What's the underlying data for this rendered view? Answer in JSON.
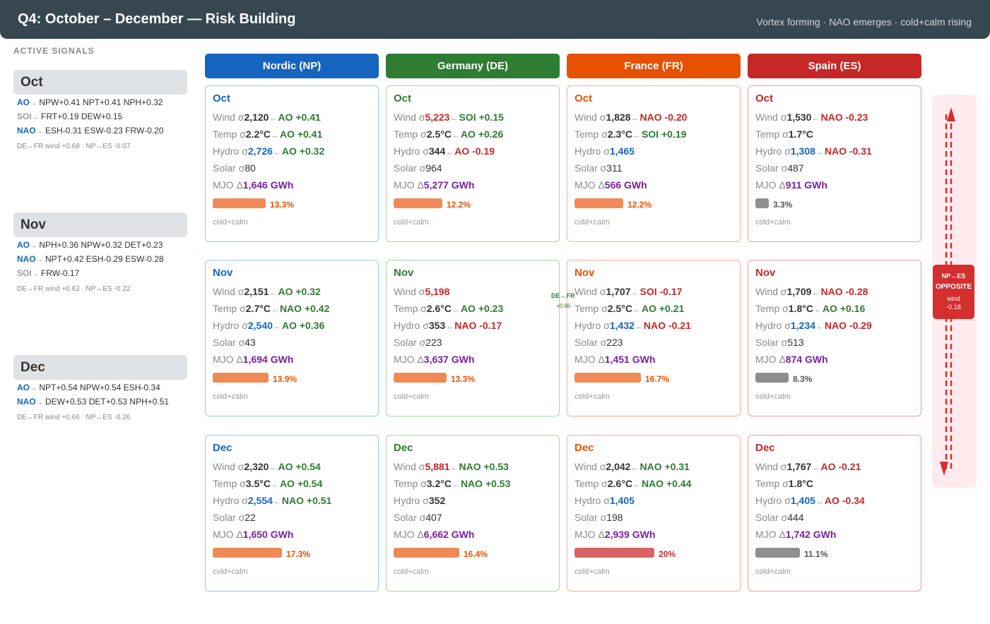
{
  "header": {
    "title": "Q4: October – December — Risk Building",
    "subtitle": "Vortex forming · NAO emerges · cold+calm rising"
  },
  "signals": {
    "heading": "ACTIVE SIGNALS",
    "months": [
      {
        "month": "Oct",
        "lines": [
          {
            "idx": "AO",
            "color": "#1565c0",
            "text": "NPW+0.41 NPT+0.41 NPH+0.32"
          },
          {
            "idx": "SOI",
            "color": "#9e9e9e",
            "text": "FRT+0.19 DEW+0.15"
          },
          {
            "idx": "NAO",
            "color": "#1565c0",
            "text": "ESH-0.31 ESW-0.23 FRW-0.20"
          }
        ],
        "corr": "DE↔FR wind +0.68 · NP↔ES -0.07"
      },
      {
        "month": "Nov",
        "lines": [
          {
            "idx": "AO",
            "color": "#1565c0",
            "text": "NPH+0.36 NPW+0.32 DET+0.23"
          },
          {
            "idx": "NAO",
            "color": "#1565c0",
            "text": "NPT+0.42 ESH-0.29 ESW-0.28"
          },
          {
            "idx": "SOI",
            "color": "#9e9e9e",
            "text": "FRW-0.17"
          }
        ],
        "corr": "DE↔FR wind +0.63 · NP↔ES -0.22"
      },
      {
        "month": "Dec",
        "lines": [
          {
            "idx": "AO",
            "color": "#1565c0",
            "text": "NPT+0.54 NPW+0.54 ESH-0.34"
          },
          {
            "idx": "NAO",
            "color": "#1565c0",
            "text": "DEW+0.53 DET+0.53 NPH+0.51"
          }
        ],
        "corr": "DE↔FR wind +0.66 · NP↔ES -0.26"
      }
    ]
  },
  "labels": {
    "wind": "Wind σ",
    "temp": "Temp σ",
    "hydro": "Hydro σ",
    "solar": "Solar σ",
    "mjo": "MJO Δ",
    "arrow": "←",
    "sig_arrow": "→",
    "tag": "cold+calm"
  },
  "countries": [
    {
      "name": "Nordic (NP)",
      "color": "#1565c0",
      "border": "#90caf9",
      "cells": [
        {
          "month": "Oct",
          "wind": "2,120",
          "wind_c": "#333333",
          "wind_drv": "AO +0.41",
          "wind_drv_c": "#2e7d32",
          "temp": "2.2°C",
          "temp_c": "#333333",
          "temp_drv": "AO +0.41",
          "temp_drv_c": "#2e7d32",
          "hydro": "2,726",
          "hydro_c": "#1565c0",
          "hydro_drv": "AO +0.32",
          "hydro_drv_c": "#2e7d32",
          "solar": "80",
          "mjo": "1,646 GWh",
          "risk": 13.3,
          "risk_label": "13.3%",
          "bar_c": "#ef8a56",
          "pct_c": "#e65100"
        },
        {
          "month": "Nov",
          "wind": "2,151",
          "wind_c": "#333333",
          "wind_drv": "AO +0.32",
          "wind_drv_c": "#2e7d32",
          "temp": "2.7°C",
          "temp_c": "#333333",
          "temp_drv": "NAO +0.42",
          "temp_drv_c": "#2e7d32",
          "hydro": "2,540",
          "hydro_c": "#1565c0",
          "hydro_drv": "AO +0.36",
          "hydro_drv_c": "#2e7d32",
          "solar": "43",
          "mjo": "1,694 GWh",
          "risk": 13.9,
          "risk_label": "13.9%",
          "bar_c": "#ef8a56",
          "pct_c": "#e65100"
        },
        {
          "month": "Dec",
          "wind": "2,320",
          "wind_c": "#333333",
          "wind_drv": "AO +0.54",
          "wind_drv_c": "#2e7d32",
          "temp": "3.5°C",
          "temp_c": "#333333",
          "temp_drv": "AO +0.54",
          "temp_drv_c": "#2e7d32",
          "hydro": "2,554",
          "hydro_c": "#1565c0",
          "hydro_drv": "NAO +0.51",
          "hydro_drv_c": "#2e7d32",
          "solar": "22",
          "mjo": "1,650 GWh",
          "risk": 17.3,
          "risk_label": "17.3%",
          "bar_c": "#ef8a56",
          "pct_c": "#e65100"
        }
      ]
    },
    {
      "name": "Germany (DE)",
      "color": "#2e7d32",
      "border": "#a5d6a7",
      "cells": [
        {
          "month": "Oct",
          "wind": "5,223",
          "wind_c": "#c62828",
          "wind_drv": "SOI +0.15",
          "wind_drv_c": "#2e7d32",
          "temp": "2.5°C",
          "temp_c": "#333333",
          "temp_drv": "AO +0.26",
          "temp_drv_c": "#2e7d32",
          "hydro": "344",
          "hydro_c": "#333333",
          "hydro_drv": "AO -0.19",
          "hydro_drv_c": "#c62828",
          "solar": "964",
          "mjo": "5,277 GWh",
          "risk": 12.2,
          "risk_label": "12.2%",
          "bar_c": "#ef8a56",
          "pct_c": "#e65100"
        },
        {
          "month": "Nov",
          "wind": "5,198",
          "wind_c": "#c62828",
          "wind_drv": "",
          "wind_drv_c": "#2e7d32",
          "temp": "2.6°C",
          "temp_c": "#333333",
          "temp_drv": "AO +0.23",
          "temp_drv_c": "#2e7d32",
          "hydro": "353",
          "hydro_c": "#333333",
          "hydro_drv": "NAO -0.17",
          "hydro_drv_c": "#c62828",
          "solar": "223",
          "mjo": "3,637 GWh",
          "risk": 13.3,
          "risk_label": "13.3%",
          "bar_c": "#ef8a56",
          "pct_c": "#e65100"
        },
        {
          "month": "Dec",
          "wind": "5,881",
          "wind_c": "#c62828",
          "wind_drv": "NAO +0.53",
          "wind_drv_c": "#2e7d32",
          "temp": "3.2°C",
          "temp_c": "#333333",
          "temp_drv": "NAO +0.53",
          "temp_drv_c": "#2e7d32",
          "hydro": "352",
          "hydro_c": "#333333",
          "hydro_drv": "",
          "hydro_drv_c": "#2e7d32",
          "solar": "407",
          "mjo": "6,662 GWh",
          "risk": 16.4,
          "risk_label": "16.4%",
          "bar_c": "#ef8a56",
          "pct_c": "#e65100"
        }
      ]
    },
    {
      "name": "France (FR)",
      "color": "#e65100",
      "border": "#ffab91",
      "cells": [
        {
          "month": "Oct",
          "wind": "1,828",
          "wind_c": "#333333",
          "wind_drv": "NAO -0.20",
          "wind_drv_c": "#c62828",
          "temp": "2.3°C",
          "temp_c": "#333333",
          "temp_drv": "SOI +0.19",
          "temp_drv_c": "#2e7d32",
          "hydro": "1,465",
          "hydro_c": "#1565c0",
          "hydro_drv": "",
          "hydro_drv_c": "#2e7d32",
          "solar": "311",
          "mjo": "566 GWh",
          "risk": 12.2,
          "risk_label": "12.2%",
          "bar_c": "#ef8a56",
          "pct_c": "#e65100"
        },
        {
          "month": "Nov",
          "wind": "1,707",
          "wind_c": "#333333",
          "wind_drv": "SOI -0.17",
          "wind_drv_c": "#c62828",
          "temp": "2.5°C",
          "temp_c": "#333333",
          "temp_drv": "AO +0.21",
          "temp_drv_c": "#2e7d32",
          "hydro": "1,432",
          "hydro_c": "#1565c0",
          "hydro_drv": "NAO -0.21",
          "hydro_drv_c": "#c62828",
          "solar": "223",
          "mjo": "1,451 GWh",
          "risk": 16.7,
          "risk_label": "16.7%",
          "bar_c": "#ef8a56",
          "pct_c": "#e65100"
        },
        {
          "month": "Dec",
          "wind": "2,042",
          "wind_c": "#333333",
          "wind_drv": "NAO +0.31",
          "wind_drv_c": "#2e7d32",
          "temp": "2.6°C",
          "temp_c": "#333333",
          "temp_drv": "NAO +0.44",
          "temp_drv_c": "#2e7d32",
          "hydro": "1,405",
          "hydro_c": "#1565c0",
          "hydro_drv": "",
          "hydro_drv_c": "#2e7d32",
          "solar": "198",
          "mjo": "2,939 GWh",
          "risk": 20,
          "risk_label": "20%",
          "bar_c": "#d96464",
          "pct_c": "#c62828"
        }
      ]
    },
    {
      "name": "Spain (ES)",
      "color": "#c62828",
      "border": "#ef9a9a",
      "cells": [
        {
          "month": "Oct",
          "wind": "1,530",
          "wind_c": "#333333",
          "wind_drv": "NAO -0.23",
          "wind_drv_c": "#c62828",
          "temp": "1.7°C",
          "temp_c": "#333333",
          "temp_drv": "",
          "temp_drv_c": "#2e7d32",
          "hydro": "1,308",
          "hydro_c": "#1565c0",
          "hydro_drv": "NAO -0.31",
          "hydro_drv_c": "#c62828",
          "solar": "487",
          "mjo": "911 GWh",
          "risk": 3.3,
          "risk_label": "3.3%",
          "bar_c": "#8f8f8f",
          "pct_c": "#555555"
        },
        {
          "month": "Nov",
          "wind": "1,709",
          "wind_c": "#333333",
          "wind_drv": "NAO -0.28",
          "wind_drv_c": "#c62828",
          "temp": "1.8°C",
          "temp_c": "#333333",
          "temp_drv": "AO +0.16",
          "temp_drv_c": "#2e7d32",
          "hydro": "1,234",
          "hydro_c": "#1565c0",
          "hydro_drv": "NAO -0.29",
          "hydro_drv_c": "#c62828",
          "solar": "513",
          "mjo": "874 GWh",
          "risk": 8.3,
          "risk_label": "8.3%",
          "bar_c": "#8f8f8f",
          "pct_c": "#555555"
        },
        {
          "month": "Dec",
          "wind": "1,767",
          "wind_c": "#333333",
          "wind_drv": "AO -0.21",
          "wind_drv_c": "#c62828",
          "temp": "1.8°C",
          "temp_c": "#333333",
          "temp_drv": "",
          "temp_drv_c": "#2e7d32",
          "hydro": "1,405",
          "hydro_c": "#1565c0",
          "hydro_drv": "AO -0.34",
          "hydro_drv_c": "#c62828",
          "solar": "444",
          "mjo": "1,742 GWh",
          "risk": 11.1,
          "risk_label": "11.1%",
          "bar_c": "#8f8f8f",
          "pct_c": "#555555"
        }
      ]
    }
  ],
  "link": {
    "pair": "DE↔FR",
    "value": "+0.66"
  },
  "opposite": {
    "pair": "NP↔ES",
    "label": "OPPOSITE",
    "metric": "wind",
    "value": "-0.18"
  },
  "colors": {
    "mjo": "#7b1fa2",
    "header_bg": "#37474f",
    "opposite": "#d32f2f"
  }
}
